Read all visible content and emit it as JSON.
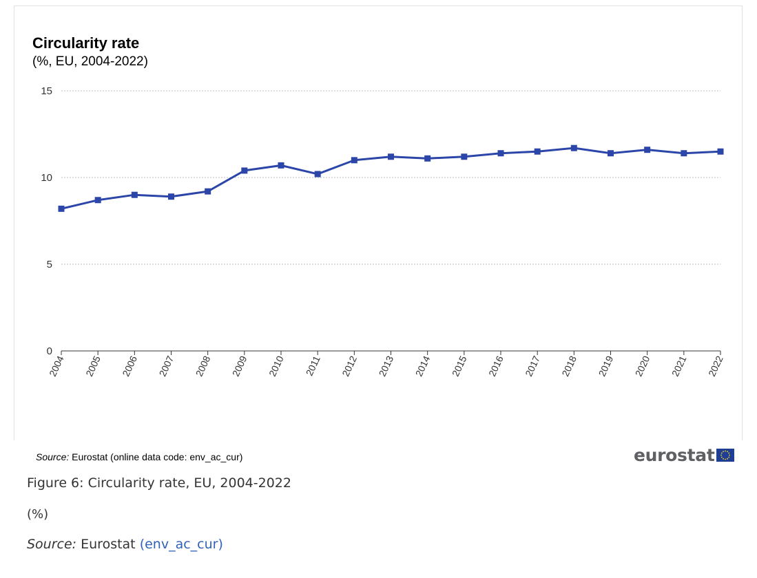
{
  "chart_data": {
    "type": "line",
    "title": "Circularity rate",
    "subtitle": "(%, EU, 2004-2022)",
    "xlabel": "",
    "ylabel": "",
    "categories": [
      "2004",
      "2005",
      "2006",
      "2007",
      "2008",
      "2009",
      "2010",
      "2011",
      "2012",
      "2013",
      "2014",
      "2015",
      "2016",
      "2017",
      "2018",
      "2019",
      "2020",
      "2021",
      "2022"
    ],
    "series": [
      {
        "values": [
          8.2,
          8.7,
          9.0,
          8.9,
          9.2,
          10.4,
          10.7,
          10.2,
          11.0,
          11.2,
          11.1,
          11.2,
          11.4,
          11.5,
          11.7,
          11.4,
          11.6,
          11.4,
          11.5
        ],
        "color": "#2c45a8"
      }
    ],
    "ylim": [
      0,
      15
    ],
    "yticks": [
      0,
      5,
      10,
      15
    ],
    "grid": "horizontal dotted",
    "legend": "none"
  },
  "source_note": {
    "label": "Source:",
    "text": "Eurostat (online data code: env_ac_cur)"
  },
  "logo": {
    "text": "eurostat",
    "icon": "eu-flag-icon"
  },
  "caption": {
    "title": "Figure 6: Circularity rate, EU, 2004-2022",
    "unit": "(%)",
    "source_label": "Source:",
    "source_org": "Eurostat",
    "source_link": "(env_ac_cur)"
  }
}
